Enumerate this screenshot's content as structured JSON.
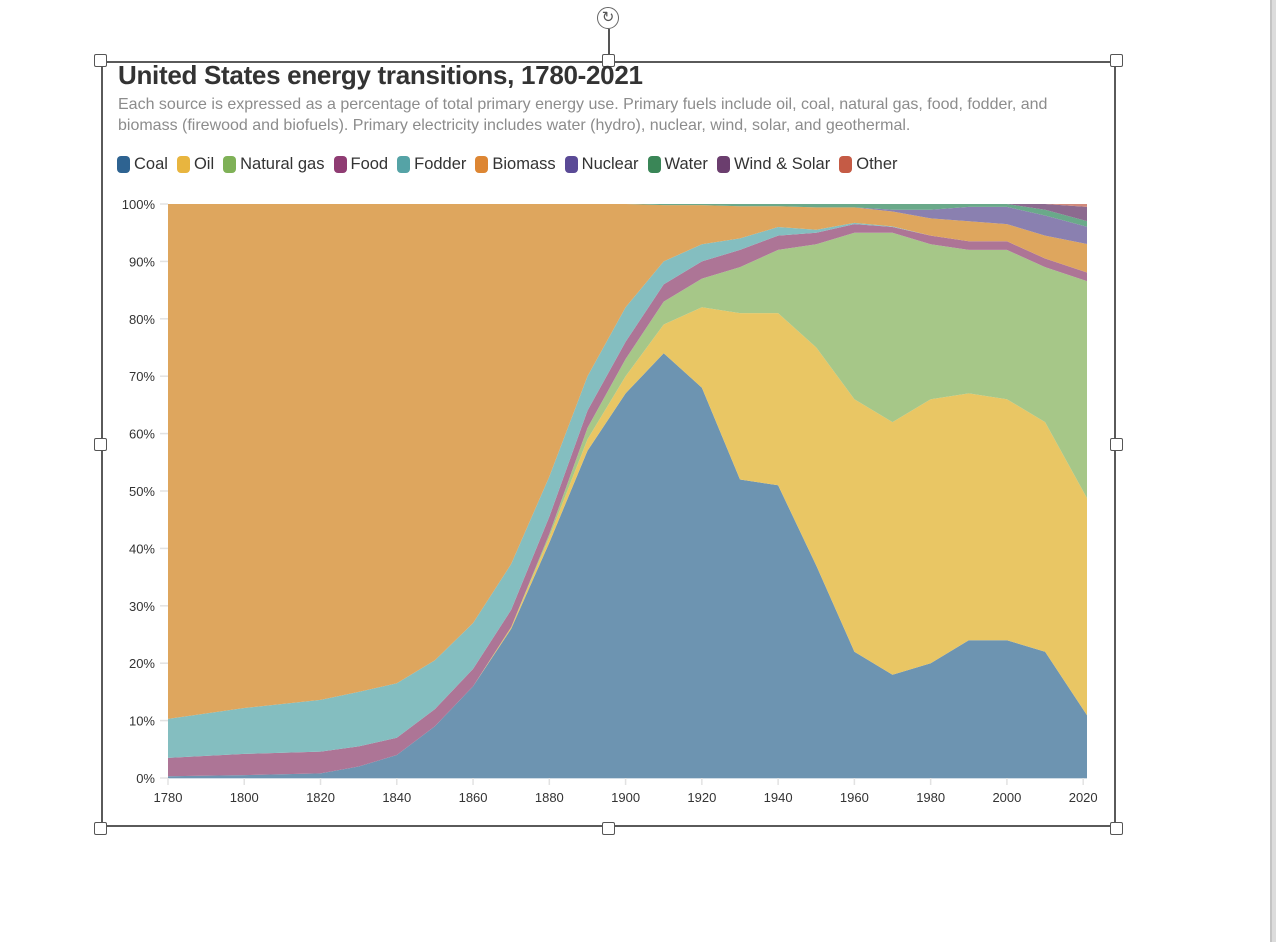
{
  "page": {
    "rotate_icon": "rotate-icon"
  },
  "chart_data": {
    "type": "area",
    "stacked": true,
    "normalized": true,
    "title": "United States energy transitions, 1780-2021",
    "subtitle": "Each source is expressed as a percentage of total primary energy use. Primary fuels include oil, coal, natural gas, food, fodder, and biomass (firewood and biofuels). Primary electricity includes water (hydro), nuclear, wind, solar, and geothermal.",
    "xlabel": "",
    "ylabel": "",
    "xlim": [
      1780,
      2021
    ],
    "ylim": [
      0,
      100
    ],
    "x_ticks": [
      "1780",
      "1800",
      "1820",
      "1840",
      "1860",
      "1880",
      "1900",
      "1920",
      "1940",
      "1960",
      "1980",
      "2000",
      "2020"
    ],
    "y_ticks": [
      "0%",
      "10%",
      "20%",
      "30%",
      "40%",
      "50%",
      "60%",
      "70%",
      "80%",
      "90%",
      "100%"
    ],
    "legend_position": "top-left",
    "x": [
      1780,
      1800,
      1820,
      1830,
      1840,
      1850,
      1860,
      1870,
      1880,
      1890,
      1900,
      1910,
      1920,
      1930,
      1940,
      1950,
      1960,
      1970,
      1980,
      1990,
      2000,
      2010,
      2021
    ],
    "series": [
      {
        "name": "Coal",
        "legend_color": "#2e6391",
        "fill": "#6d94b1",
        "values": [
          0.3,
          0.5,
          0.8,
          2,
          4,
          9,
          16,
          26,
          41,
          57,
          67,
          74,
          68,
          52,
          51,
          37,
          22,
          18,
          20,
          24,
          24,
          22,
          11
        ]
      },
      {
        "name": "Oil",
        "legend_color": "#e8b53f",
        "fill": "#e9c664",
        "values": [
          0,
          0,
          0,
          0,
          0,
          0,
          0,
          0.3,
          1,
          2,
          3,
          5,
          14,
          29,
          30,
          38,
          44,
          44,
          46,
          43,
          42,
          40,
          38
        ]
      },
      {
        "name": "Natural gas",
        "legend_color": "#7fb157",
        "fill": "#a6c788",
        "values": [
          0,
          0,
          0,
          0,
          0,
          0,
          0,
          0,
          0.5,
          2,
          3,
          4,
          5,
          8,
          11,
          18,
          29,
          33,
          27,
          25,
          26,
          27,
          38
        ]
      },
      {
        "name": "Food",
        "legend_color": "#8f3c73",
        "fill": "#ad7596",
        "values": [
          3.2,
          3.7,
          3.8,
          3.5,
          3,
          3,
          3,
          3,
          3,
          3,
          3,
          3,
          3,
          3,
          2.5,
          2,
          1.5,
          1,
          1.5,
          1.5,
          1.5,
          1.5,
          1.5
        ]
      },
      {
        "name": "Fodder",
        "legend_color": "#55a3a6",
        "fill": "#84bec0",
        "values": [
          6.8,
          8,
          9,
          9.5,
          9.5,
          8.5,
          8,
          8,
          7,
          6,
          6,
          4,
          3,
          2,
          1.5,
          0.5,
          0.2,
          0.1,
          0,
          0,
          0,
          0,
          0
        ]
      },
      {
        "name": "Biomass",
        "legend_color": "#dd8633",
        "fill": "#dea65e",
        "values": [
          89.7,
          87.8,
          86.4,
          85,
          83.5,
          79.5,
          73,
          62.7,
          47.5,
          30,
          18,
          9.8,
          6.8,
          5.6,
          3.6,
          3.9,
          2.7,
          2.6,
          3,
          3.5,
          3,
          4,
          5
        ]
      },
      {
        "name": "Nuclear",
        "legend_color": "#5a4a96",
        "fill": "#8a80b0",
        "values": [
          0,
          0,
          0,
          0,
          0,
          0,
          0,
          0,
          0,
          0,
          0,
          0,
          0,
          0,
          0,
          0,
          0,
          0.3,
          1.5,
          2.5,
          3,
          3.5,
          3
        ]
      },
      {
        "name": "Water",
        "legend_color": "#3a8657",
        "fill": "#6aa98a",
        "values": [
          0,
          0,
          0,
          0,
          0,
          0,
          0,
          0,
          0,
          0,
          0,
          0.2,
          0.2,
          0.4,
          0.4,
          0.6,
          0.6,
          1,
          1,
          0.5,
          0.5,
          1,
          1
        ]
      },
      {
        "name": "Wind & Solar",
        "legend_color": "#6b3e6e",
        "fill": "#8c6a8f",
        "values": [
          0,
          0,
          0,
          0,
          0,
          0,
          0,
          0,
          0,
          0,
          0,
          0,
          0,
          0,
          0,
          0,
          0,
          0,
          0,
          0,
          0,
          1,
          2.5
        ]
      },
      {
        "name": "Other",
        "legend_color": "#c55b45",
        "fill": "#d28a7b",
        "values": [
          0,
          0,
          0,
          0,
          0,
          0,
          0,
          0,
          0,
          0,
          0,
          0,
          0,
          0,
          0,
          0,
          0,
          0,
          0,
          0,
          0,
          0,
          0.5
        ]
      }
    ]
  }
}
